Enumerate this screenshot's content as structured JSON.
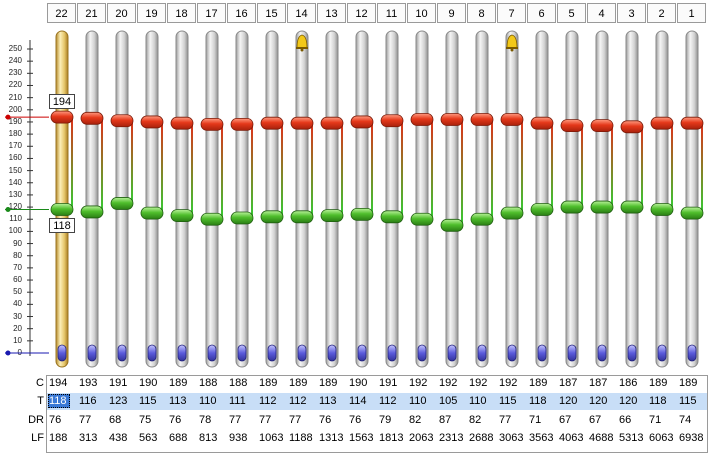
{
  "channels": [
    {
      "id": "22",
      "c": "194",
      "t": "118",
      "dr": "76",
      "lf": "188",
      "alarm": false
    },
    {
      "id": "21",
      "c": "193",
      "t": "116",
      "dr": "77",
      "lf": "313",
      "alarm": false
    },
    {
      "id": "20",
      "c": "191",
      "t": "123",
      "dr": "68",
      "lf": "438",
      "alarm": false
    },
    {
      "id": "19",
      "c": "190",
      "t": "115",
      "dr": "75",
      "lf": "563",
      "alarm": false
    },
    {
      "id": "18",
      "c": "189",
      "t": "113",
      "dr": "76",
      "lf": "688",
      "alarm": false
    },
    {
      "id": "17",
      "c": "188",
      "t": "110",
      "dr": "78",
      "lf": "813",
      "alarm": false
    },
    {
      "id": "16",
      "c": "188",
      "t": "111",
      "dr": "77",
      "lf": "938",
      "alarm": false
    },
    {
      "id": "15",
      "c": "189",
      "t": "112",
      "dr": "77",
      "lf": "1063",
      "alarm": false
    },
    {
      "id": "14",
      "c": "189",
      "t": "112",
      "dr": "77",
      "lf": "1188",
      "alarm": true
    },
    {
      "id": "13",
      "c": "189",
      "t": "113",
      "dr": "76",
      "lf": "1313",
      "alarm": false
    },
    {
      "id": "12",
      "c": "190",
      "t": "114",
      "dr": "76",
      "lf": "1563",
      "alarm": false
    },
    {
      "id": "11",
      "c": "191",
      "t": "112",
      "dr": "79",
      "lf": "1813",
      "alarm": false
    },
    {
      "id": "10",
      "c": "192",
      "t": "110",
      "dr": "82",
      "lf": "2063",
      "alarm": false
    },
    {
      "id": "9",
      "c": "192",
      "t": "105",
      "dr": "87",
      "lf": "2313",
      "alarm": false
    },
    {
      "id": "8",
      "c": "192",
      "t": "110",
      "dr": "82",
      "lf": "2688",
      "alarm": false
    },
    {
      "id": "7",
      "c": "192",
      "t": "115",
      "dr": "77",
      "lf": "3063",
      "alarm": true
    },
    {
      "id": "6",
      "c": "189",
      "t": "118",
      "dr": "71",
      "lf": "3563",
      "alarm": false
    },
    {
      "id": "5",
      "c": "187",
      "t": "120",
      "dr": "67",
      "lf": "4063",
      "alarm": false
    },
    {
      "id": "4",
      "c": "187",
      "t": "120",
      "dr": "67",
      "lf": "4688",
      "alarm": false
    },
    {
      "id": "3",
      "c": "186",
      "t": "120",
      "dr": "66",
      "lf": "5313",
      "alarm": false
    },
    {
      "id": "2",
      "c": "189",
      "t": "118",
      "dr": "71",
      "lf": "6063",
      "alarm": false
    },
    {
      "id": "1",
      "c": "189",
      "t": "115",
      "dr": "74",
      "lf": "6938",
      "alarm": false
    }
  ],
  "selected_channel": "22",
  "selected_c_readout": "194",
  "selected_t_readout": "118",
  "axis": {
    "ticks": [
      "0",
      "10",
      "20",
      "30",
      "40",
      "50",
      "60",
      "70",
      "80",
      "90",
      "100",
      "110",
      "120",
      "130",
      "140",
      "150",
      "160",
      "170",
      "180",
      "190",
      "200",
      "210",
      "220",
      "230",
      "240",
      "250"
    ]
  },
  "row_labels": {
    "c": "C",
    "t": "T",
    "dr": "DR",
    "lf": "LF"
  },
  "icons": {
    "alarm": "bell-icon",
    "c_handle": "red-knob-icon",
    "t_handle": "green-knob-icon",
    "bottom_handle": "blue-knob-icon"
  },
  "colors": {
    "c_handle": "#e03a1a",
    "t_handle": "#4cbf2e",
    "bottom_handle": "#5a5ad8",
    "selected_track": "#e8c96a",
    "track": "#d9d9d9"
  }
}
